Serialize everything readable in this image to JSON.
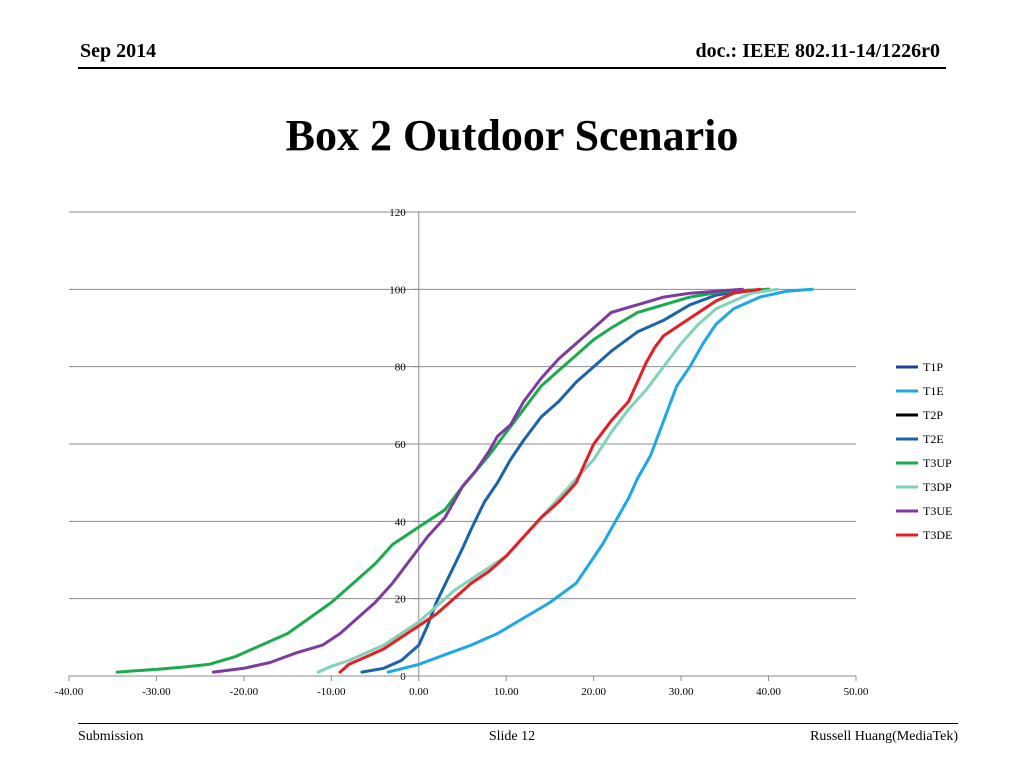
{
  "header": {
    "date": "Sep 2014",
    "doc_id": "doc.: IEEE 802.11-14/1226r0"
  },
  "slide": {
    "title": "Box 2 Outdoor Scenario"
  },
  "footer": {
    "left": "Submission",
    "center": "Slide 12",
    "right": "Russell Huang(MediaTek)"
  },
  "chart_data": {
    "type": "line",
    "title": "",
    "xlabel": "",
    "ylabel": "",
    "xlim": [
      -40,
      50
    ],
    "ylim": [
      0,
      120
    ],
    "x_ticks": [
      "-40.00",
      "-30.00",
      "-20.00",
      "-10.00",
      "0.00",
      "10.00",
      "20.00",
      "30.00",
      "40.00",
      "50.00"
    ],
    "y_ticks": [
      "0",
      "20",
      "40",
      "60",
      "80",
      "100",
      "120"
    ],
    "grid": "horizontal",
    "legend_position": "right",
    "series": [
      {
        "name": "T1P",
        "color": "#1f3f9f",
        "points": []
      },
      {
        "name": "T1E",
        "color": "#1ea7e6",
        "points": [
          [
            -3.5,
            1
          ],
          [
            0,
            3
          ],
          [
            3,
            5.5
          ],
          [
            6,
            8
          ],
          [
            9,
            11
          ],
          [
            12,
            15
          ],
          [
            15,
            19
          ],
          [
            18,
            24
          ],
          [
            19.5,
            29
          ],
          [
            21,
            34
          ],
          [
            22.5,
            40
          ],
          [
            24,
            46
          ],
          [
            25,
            51
          ],
          [
            26.5,
            57
          ],
          [
            27.5,
            63
          ],
          [
            28.5,
            69
          ],
          [
            29.5,
            75
          ],
          [
            31,
            80
          ],
          [
            32.5,
            86
          ],
          [
            34,
            91
          ],
          [
            36,
            95
          ],
          [
            39,
            98
          ],
          [
            42,
            99.5
          ],
          [
            45,
            100
          ]
        ]
      },
      {
        "name": "T2P",
        "color": "#000000",
        "points": []
      },
      {
        "name": "T2E",
        "color": "#1b62ad",
        "points": [
          [
            -6.5,
            1
          ],
          [
            -4,
            2
          ],
          [
            -2,
            4
          ],
          [
            0,
            8
          ],
          [
            1,
            13
          ],
          [
            2,
            19
          ],
          [
            3.5,
            26
          ],
          [
            5,
            33
          ],
          [
            6,
            38
          ],
          [
            7.5,
            45
          ],
          [
            9,
            50
          ],
          [
            10.5,
            56
          ],
          [
            12,
            61
          ],
          [
            14,
            67
          ],
          [
            16,
            71
          ],
          [
            18,
            76
          ],
          [
            20,
            80
          ],
          [
            22,
            84
          ],
          [
            25,
            89
          ],
          [
            28,
            92
          ],
          [
            31,
            96
          ],
          [
            34,
            98.5
          ],
          [
            37,
            99.5
          ],
          [
            40,
            100
          ]
        ]
      },
      {
        "name": "T3UP",
        "color": "#1aab4f",
        "points": [
          [
            -34.5,
            1
          ],
          [
            -30,
            1.7
          ],
          [
            -27,
            2.3
          ],
          [
            -24,
            3
          ],
          [
            -21,
            5
          ],
          [
            -18,
            8
          ],
          [
            -15,
            11
          ],
          [
            -12.5,
            15
          ],
          [
            -10,
            19
          ],
          [
            -7.5,
            24
          ],
          [
            -5,
            29
          ],
          [
            -3,
            34
          ],
          [
            -1,
            37
          ],
          [
            1,
            40
          ],
          [
            3,
            43
          ],
          [
            5,
            49
          ],
          [
            6.5,
            53
          ],
          [
            8,
            57
          ],
          [
            10,
            63
          ],
          [
            12,
            69
          ],
          [
            14,
            75
          ],
          [
            16,
            79
          ],
          [
            18,
            83
          ],
          [
            20,
            87
          ],
          [
            22,
            90
          ],
          [
            25,
            94
          ],
          [
            28,
            96
          ],
          [
            31,
            98
          ],
          [
            35,
            99.5
          ],
          [
            40,
            100
          ]
        ]
      },
      {
        "name": "T3DP",
        "color": "#7fd4b4",
        "points": [
          [
            -11.5,
            1
          ],
          [
            -10,
            2.5
          ],
          [
            -8,
            4
          ],
          [
            -6,
            6
          ],
          [
            -4,
            8
          ],
          [
            -2,
            11
          ],
          [
            0,
            14
          ],
          [
            2,
            18
          ],
          [
            4,
            22
          ],
          [
            6,
            25
          ],
          [
            8,
            28
          ],
          [
            10,
            31
          ],
          [
            12,
            36
          ],
          [
            14,
            41
          ],
          [
            16,
            46
          ],
          [
            18,
            51
          ],
          [
            20,
            56
          ],
          [
            22,
            63
          ],
          [
            24,
            69
          ],
          [
            26,
            74
          ],
          [
            28,
            80
          ],
          [
            30,
            86
          ],
          [
            32,
            91
          ],
          [
            34,
            95
          ],
          [
            36,
            97
          ],
          [
            38,
            99
          ],
          [
            41,
            100
          ]
        ]
      },
      {
        "name": "T3UE",
        "color": "#7d3a9f",
        "points": [
          [
            -23.5,
            1
          ],
          [
            -20,
            2
          ],
          [
            -17,
            3.5
          ],
          [
            -14,
            6
          ],
          [
            -11,
            8
          ],
          [
            -9,
            11
          ],
          [
            -7,
            15
          ],
          [
            -5,
            19
          ],
          [
            -3,
            24
          ],
          [
            -1,
            30
          ],
          [
            1,
            36
          ],
          [
            3,
            41
          ],
          [
            5,
            49
          ],
          [
            6.5,
            53
          ],
          [
            8,
            58
          ],
          [
            9,
            62
          ],
          [
            10.5,
            65
          ],
          [
            12,
            71
          ],
          [
            14,
            77
          ],
          [
            16,
            82
          ],
          [
            18,
            86
          ],
          [
            20,
            90
          ],
          [
            22,
            94
          ],
          [
            25,
            96
          ],
          [
            28,
            98
          ],
          [
            31,
            99
          ],
          [
            34,
            99.5
          ],
          [
            37,
            100
          ]
        ]
      },
      {
        "name": "T3DE",
        "color": "#e81c24",
        "points": [
          [
            -9,
            1
          ],
          [
            -8,
            3
          ],
          [
            -6,
            5
          ],
          [
            -4,
            7
          ],
          [
            -2,
            10
          ],
          [
            0,
            13
          ],
          [
            2,
            16
          ],
          [
            4,
            20
          ],
          [
            6,
            24
          ],
          [
            8,
            27
          ],
          [
            10,
            31
          ],
          [
            12,
            36
          ],
          [
            14,
            41
          ],
          [
            16,
            45
          ],
          [
            18,
            50
          ],
          [
            19,
            55
          ],
          [
            20,
            60
          ],
          [
            22,
            66
          ],
          [
            24,
            71
          ],
          [
            25,
            76
          ],
          [
            26,
            81
          ],
          [
            27,
            85
          ],
          [
            28,
            88
          ],
          [
            30,
            91
          ],
          [
            32,
            94
          ],
          [
            34,
            97
          ],
          [
            36,
            99
          ],
          [
            39,
            100
          ]
        ]
      }
    ]
  }
}
